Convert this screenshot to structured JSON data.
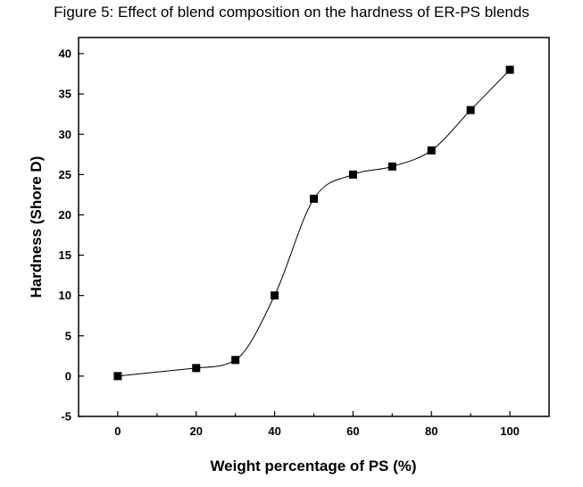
{
  "chart_data": {
    "type": "line",
    "title": "Figure 5: Effect of blend composition on the hardness of ER-PS blends",
    "xlabel": "Weight percentage of PS (%)",
    "ylabel": "Hardness (Shore D)",
    "x": [
      0,
      20,
      30,
      40,
      50,
      60,
      70,
      80,
      90,
      100
    ],
    "y": [
      0,
      1,
      2,
      10,
      22,
      25,
      26,
      28,
      33,
      38
    ],
    "xlim": [
      -10,
      110
    ],
    "ylim": [
      -5,
      42
    ],
    "xticks": [
      0,
      20,
      40,
      60,
      80,
      100
    ],
    "xticks_minor": [
      10,
      30,
      50,
      70,
      90
    ],
    "yticks": [
      -5,
      0,
      5,
      10,
      15,
      20,
      25,
      30,
      35,
      40
    ],
    "marker": "square",
    "smooth_line": true,
    "grid": false,
    "legend": "none"
  }
}
